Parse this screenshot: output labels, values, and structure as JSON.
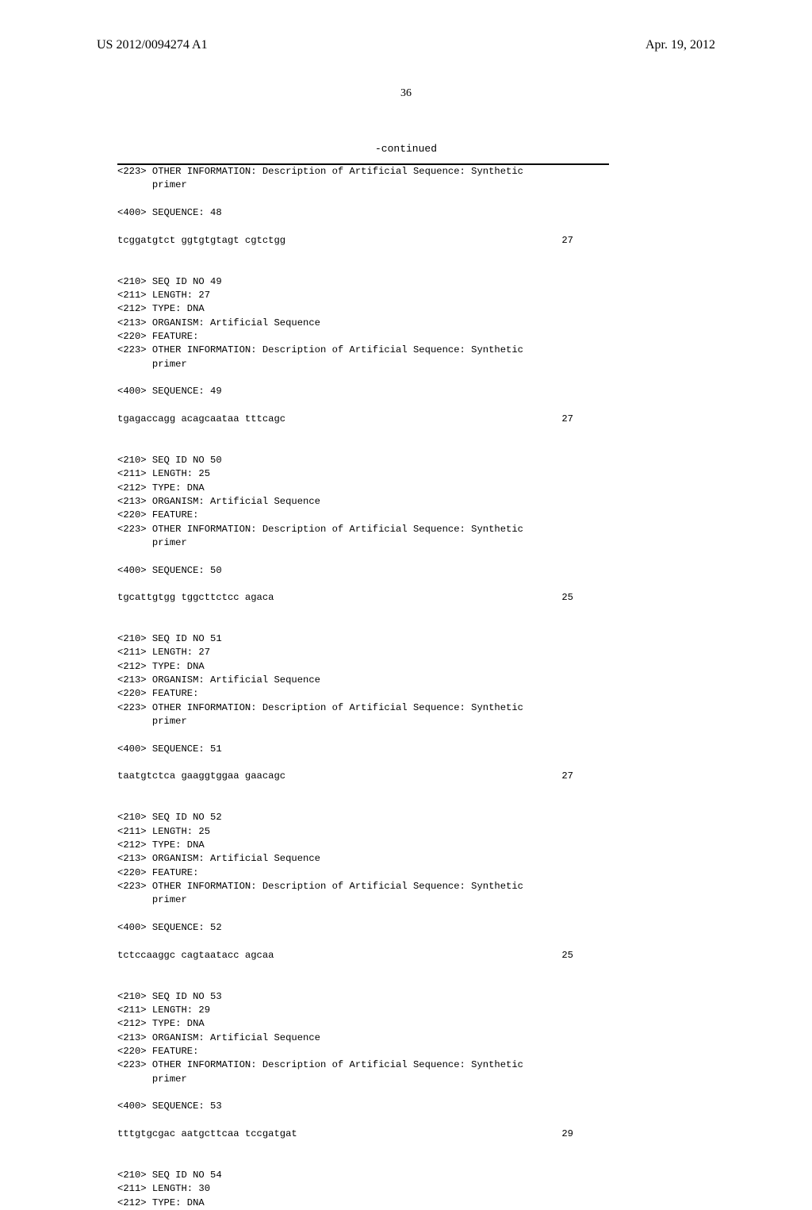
{
  "header": {
    "left": "US 2012/0094274 A1",
    "right": "Apr. 19, 2012"
  },
  "page_number": "36",
  "continued_label": "-continued",
  "entries": [
    {
      "prelines": [
        "<223> OTHER INFORMATION: Description of Artificial Sequence: Synthetic",
        "      primer"
      ],
      "seqlabel": "<400> SEQUENCE: 48",
      "sequence": "tcggatgtct ggtgtgtagt cgtctgg",
      "length": "27"
    },
    {
      "prelines": [
        "<210> SEQ ID NO 49",
        "<211> LENGTH: 27",
        "<212> TYPE: DNA",
        "<213> ORGANISM: Artificial Sequence",
        "<220> FEATURE:",
        "<223> OTHER INFORMATION: Description of Artificial Sequence: Synthetic",
        "      primer"
      ],
      "seqlabel": "<400> SEQUENCE: 49",
      "sequence": "tgagaccagg acagcaataa tttcagc",
      "length": "27"
    },
    {
      "prelines": [
        "<210> SEQ ID NO 50",
        "<211> LENGTH: 25",
        "<212> TYPE: DNA",
        "<213> ORGANISM: Artificial Sequence",
        "<220> FEATURE:",
        "<223> OTHER INFORMATION: Description of Artificial Sequence: Synthetic",
        "      primer"
      ],
      "seqlabel": "<400> SEQUENCE: 50",
      "sequence": "tgcattgtgg tggcttctcc agaca",
      "length": "25"
    },
    {
      "prelines": [
        "<210> SEQ ID NO 51",
        "<211> LENGTH: 27",
        "<212> TYPE: DNA",
        "<213> ORGANISM: Artificial Sequence",
        "<220> FEATURE:",
        "<223> OTHER INFORMATION: Description of Artificial Sequence: Synthetic",
        "      primer"
      ],
      "seqlabel": "<400> SEQUENCE: 51",
      "sequence": "taatgtctca gaaggtggaa gaacagc",
      "length": "27"
    },
    {
      "prelines": [
        "<210> SEQ ID NO 52",
        "<211> LENGTH: 25",
        "<212> TYPE: DNA",
        "<213> ORGANISM: Artificial Sequence",
        "<220> FEATURE:",
        "<223> OTHER INFORMATION: Description of Artificial Sequence: Synthetic",
        "      primer"
      ],
      "seqlabel": "<400> SEQUENCE: 52",
      "sequence": "tctccaaggc cagtaatacc agcaa",
      "length": "25"
    },
    {
      "prelines": [
        "<210> SEQ ID NO 53",
        "<211> LENGTH: 29",
        "<212> TYPE: DNA",
        "<213> ORGANISM: Artificial Sequence",
        "<220> FEATURE:",
        "<223> OTHER INFORMATION: Description of Artificial Sequence: Synthetic",
        "      primer"
      ],
      "seqlabel": "<400> SEQUENCE: 53",
      "sequence": "tttgtgcgac aatgcttcaa tccgatgat",
      "length": "29"
    },
    {
      "prelines": [
        "<210> SEQ ID NO 54",
        "<211> LENGTH: 30",
        "<212> TYPE: DNA"
      ],
      "seqlabel": null,
      "sequence": null,
      "length": null
    }
  ]
}
